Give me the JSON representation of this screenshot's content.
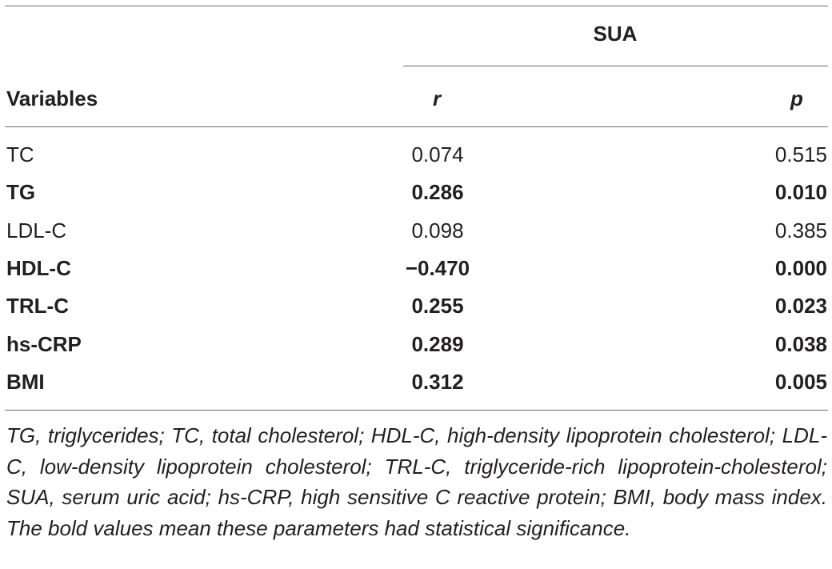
{
  "table": {
    "group_header": "SUA",
    "col_variables": "Variables",
    "col_r": "r",
    "col_p": "p",
    "rows": [
      {
        "variable": "TC",
        "r": "0.074",
        "p": "0.515",
        "bold": false
      },
      {
        "variable": "TG",
        "r": "0.286",
        "p": "0.010",
        "bold": true
      },
      {
        "variable": "LDL-C",
        "r": "0.098",
        "p": "0.385",
        "bold": false
      },
      {
        "variable": "HDL-C",
        "r": "−0.470",
        "p": "0.000",
        "bold": true
      },
      {
        "variable": "TRL-C",
        "r": "0.255",
        "p": "0.023",
        "bold": true
      },
      {
        "variable": "hs-CRP",
        "r": "0.289",
        "p": "0.038",
        "bold": true
      },
      {
        "variable": "BMI",
        "r": "0.312",
        "p": "0.005",
        "bold": true
      }
    ]
  },
  "footnote": "TG, triglycerides; TC, total cholesterol; HDL-C, high-density lipoprotein cholesterol; LDL-C, low-density lipoprotein cholesterol; TRL-C, triglyceride-rich lipoprotein-cholesterol; SUA, serum uric acid; hs-CRP, high sensitive C reactive protein; BMI, body mass index. The bold values mean these parameters had statistical significance."
}
